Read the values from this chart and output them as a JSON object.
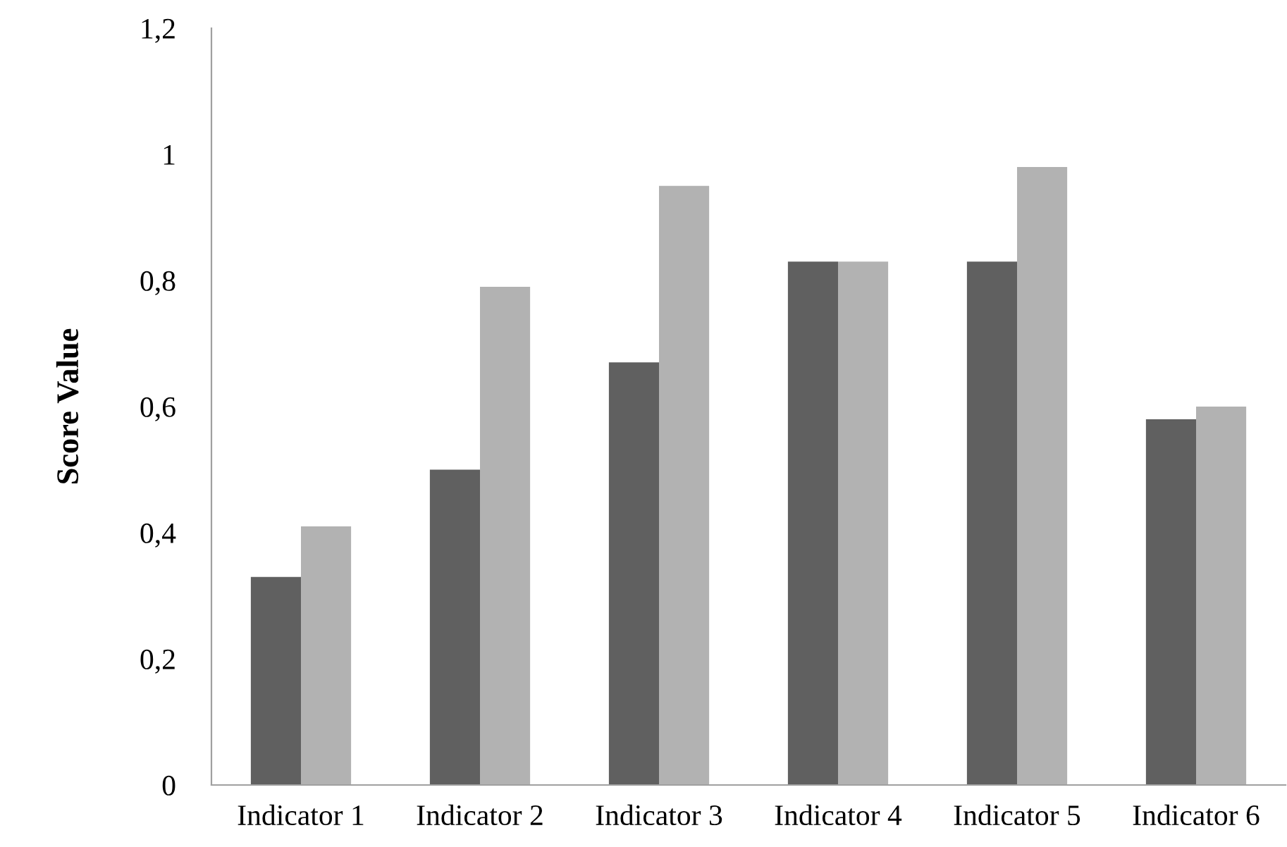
{
  "chart_data": {
    "type": "bar",
    "ylabel": "Score Value",
    "categories": [
      "Indicator 1",
      "Indicator 2",
      "Indicator 3",
      "Indicator 4",
      "Indicator 5",
      "Indicator 6"
    ],
    "series": [
      {
        "color": "#606060",
        "values": [
          0.33,
          0.5,
          0.67,
          0.83,
          0.83,
          0.58
        ]
      },
      {
        "color": "#b2b2b2",
        "values": [
          0.41,
          0.79,
          0.95,
          0.83,
          0.98,
          0.6
        ]
      }
    ],
    "ylim": [
      0,
      1.2
    ],
    "yticks": [
      0,
      {
        "value": 0.2,
        "label": "0,2"
      },
      {
        "value": 0.4,
        "label": "0,4"
      },
      {
        "value": 0.6,
        "label": "0,6"
      },
      {
        "value": 0.8,
        "label": "0,8"
      },
      1,
      {
        "value": 1.2,
        "label": "1,2"
      }
    ],
    "grid": false
  }
}
